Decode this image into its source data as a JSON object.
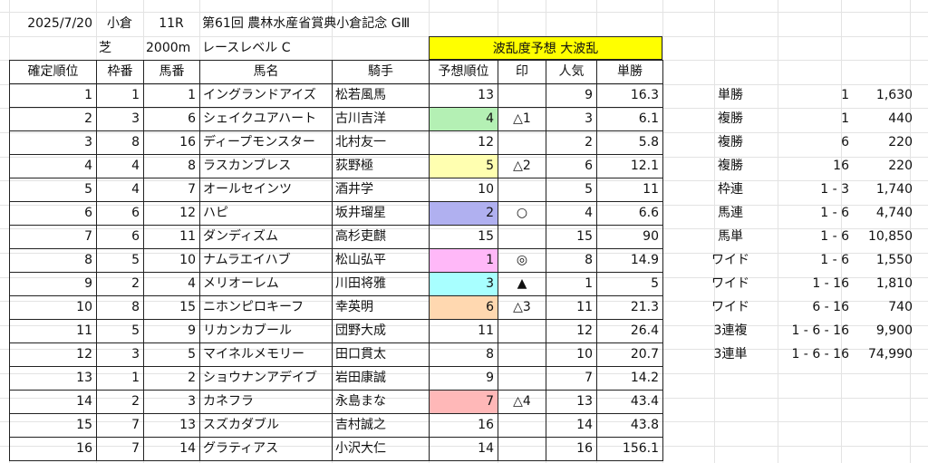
{
  "header": {
    "date": "2025/7/20",
    "venue": "小倉",
    "race_no": "11R",
    "race_name": "第61回 農林水産省賞典小倉記念 GⅢ",
    "surface": "芝",
    "distance": "2000m",
    "race_level": "レースレベル C",
    "banner": "波乱度予想 大波乱"
  },
  "columns": [
    "確定順位",
    "枠番",
    "馬番",
    "馬名",
    "騎手",
    "予想順位",
    "印",
    "人気",
    "単勝"
  ],
  "colors": {
    "green": "#b4f0b4",
    "yellow": "#ffffb0",
    "purple": "#b0b0f0",
    "pink": "#ffb8f8",
    "cyan": "#a8ffff",
    "orange": "#ffd8b0",
    "red": "#ffb8b8"
  },
  "rows": [
    {
      "pos": "1",
      "waku": "1",
      "umaban": "1",
      "horse": "イングランドアイズ",
      "jockey": "松若風馬",
      "pred": "13",
      "mark": "",
      "pop": "9",
      "odds": "16.3",
      "color": ""
    },
    {
      "pos": "2",
      "waku": "3",
      "umaban": "6",
      "horse": "シェイクユアハート",
      "jockey": "古川吉洋",
      "pred": "4",
      "mark": "△1",
      "pop": "3",
      "odds": "6.1",
      "color": "green"
    },
    {
      "pos": "3",
      "waku": "8",
      "umaban": "16",
      "horse": "ディープモンスター",
      "jockey": "北村友一",
      "pred": "12",
      "mark": "",
      "pop": "2",
      "odds": "5.8",
      "color": ""
    },
    {
      "pos": "4",
      "waku": "4",
      "umaban": "8",
      "horse": "ラスカンブレス",
      "jockey": "荻野極",
      "pred": "5",
      "mark": "△2",
      "pop": "6",
      "odds": "12.1",
      "color": "yellow"
    },
    {
      "pos": "5",
      "waku": "4",
      "umaban": "7",
      "horse": "オールセインツ",
      "jockey": "酒井学",
      "pred": "10",
      "mark": "",
      "pop": "5",
      "odds": "11",
      "color": ""
    },
    {
      "pos": "6",
      "waku": "6",
      "umaban": "12",
      "horse": "ハピ",
      "jockey": "坂井瑠星",
      "pred": "2",
      "mark": "○",
      "pop": "4",
      "odds": "6.6",
      "color": "purple"
    },
    {
      "pos": "7",
      "waku": "6",
      "umaban": "11",
      "horse": "ダンディズム",
      "jockey": "高杉吏麒",
      "pred": "15",
      "mark": "",
      "pop": "15",
      "odds": "90",
      "color": ""
    },
    {
      "pos": "8",
      "waku": "5",
      "umaban": "10",
      "horse": "ナムラエイハブ",
      "jockey": "松山弘平",
      "pred": "1",
      "mark": "◎",
      "pop": "8",
      "odds": "14.9",
      "color": "pink"
    },
    {
      "pos": "9",
      "waku": "2",
      "umaban": "4",
      "horse": "メリオーレム",
      "jockey": "川田将雅",
      "pred": "3",
      "mark": "▲",
      "pop": "1",
      "odds": "5",
      "color": "cyan"
    },
    {
      "pos": "10",
      "waku": "8",
      "umaban": "15",
      "horse": "ニホンピロキーフ",
      "jockey": "幸英明",
      "pred": "6",
      "mark": "△3",
      "pop": "11",
      "odds": "21.3",
      "color": "orange"
    },
    {
      "pos": "11",
      "waku": "5",
      "umaban": "9",
      "horse": "リカンカブール",
      "jockey": "団野大成",
      "pred": "11",
      "mark": "",
      "pop": "12",
      "odds": "26.4",
      "color": ""
    },
    {
      "pos": "12",
      "waku": "3",
      "umaban": "5",
      "horse": "マイネルメモリー",
      "jockey": "田口貫太",
      "pred": "8",
      "mark": "",
      "pop": "10",
      "odds": "20.7",
      "color": ""
    },
    {
      "pos": "13",
      "waku": "1",
      "umaban": "2",
      "horse": "ショウナンアデイブ",
      "jockey": "岩田康誠",
      "pred": "9",
      "mark": "",
      "pop": "7",
      "odds": "14.2",
      "color": ""
    },
    {
      "pos": "14",
      "waku": "2",
      "umaban": "3",
      "horse": "カネフラ",
      "jockey": "永島まな",
      "pred": "7",
      "mark": "△4",
      "pop": "13",
      "odds": "43.4",
      "color": "red"
    },
    {
      "pos": "15",
      "waku": "7",
      "umaban": "13",
      "horse": "スズカダブル",
      "jockey": "吉村誠之",
      "pred": "16",
      "mark": "",
      "pop": "14",
      "odds": "43.8",
      "color": ""
    },
    {
      "pos": "16",
      "waku": "7",
      "umaban": "14",
      "horse": "グラティアス",
      "jockey": "小沢大仁",
      "pred": "14",
      "mark": "",
      "pop": "16",
      "odds": "156.1",
      "color": ""
    }
  ],
  "payouts": [
    {
      "type": "単勝",
      "combo": "1",
      "amount": "1,630"
    },
    {
      "type": "複勝",
      "combo": "1",
      "amount": "440"
    },
    {
      "type": "複勝",
      "combo": "6",
      "amount": "220"
    },
    {
      "type": "複勝",
      "combo": "16",
      "amount": "220"
    },
    {
      "type": "枠連",
      "combo": "1 - 3",
      "amount": "1,740"
    },
    {
      "type": "馬連",
      "combo": "1 - 6",
      "amount": "4,740"
    },
    {
      "type": "馬単",
      "combo": "1 - 6",
      "amount": "10,850"
    },
    {
      "type": "ワイド",
      "combo": "1 - 6",
      "amount": "1,550"
    },
    {
      "type": "ワイド",
      "combo": "1 - 16",
      "amount": "1,810"
    },
    {
      "type": "ワイド",
      "combo": "6 - 16",
      "amount": "740"
    },
    {
      "type": "3連複",
      "combo": "1 - 6 - 16",
      "amount": "9,900"
    },
    {
      "type": "3連単",
      "combo": "1 - 6 - 16",
      "amount": "74,990"
    }
  ]
}
